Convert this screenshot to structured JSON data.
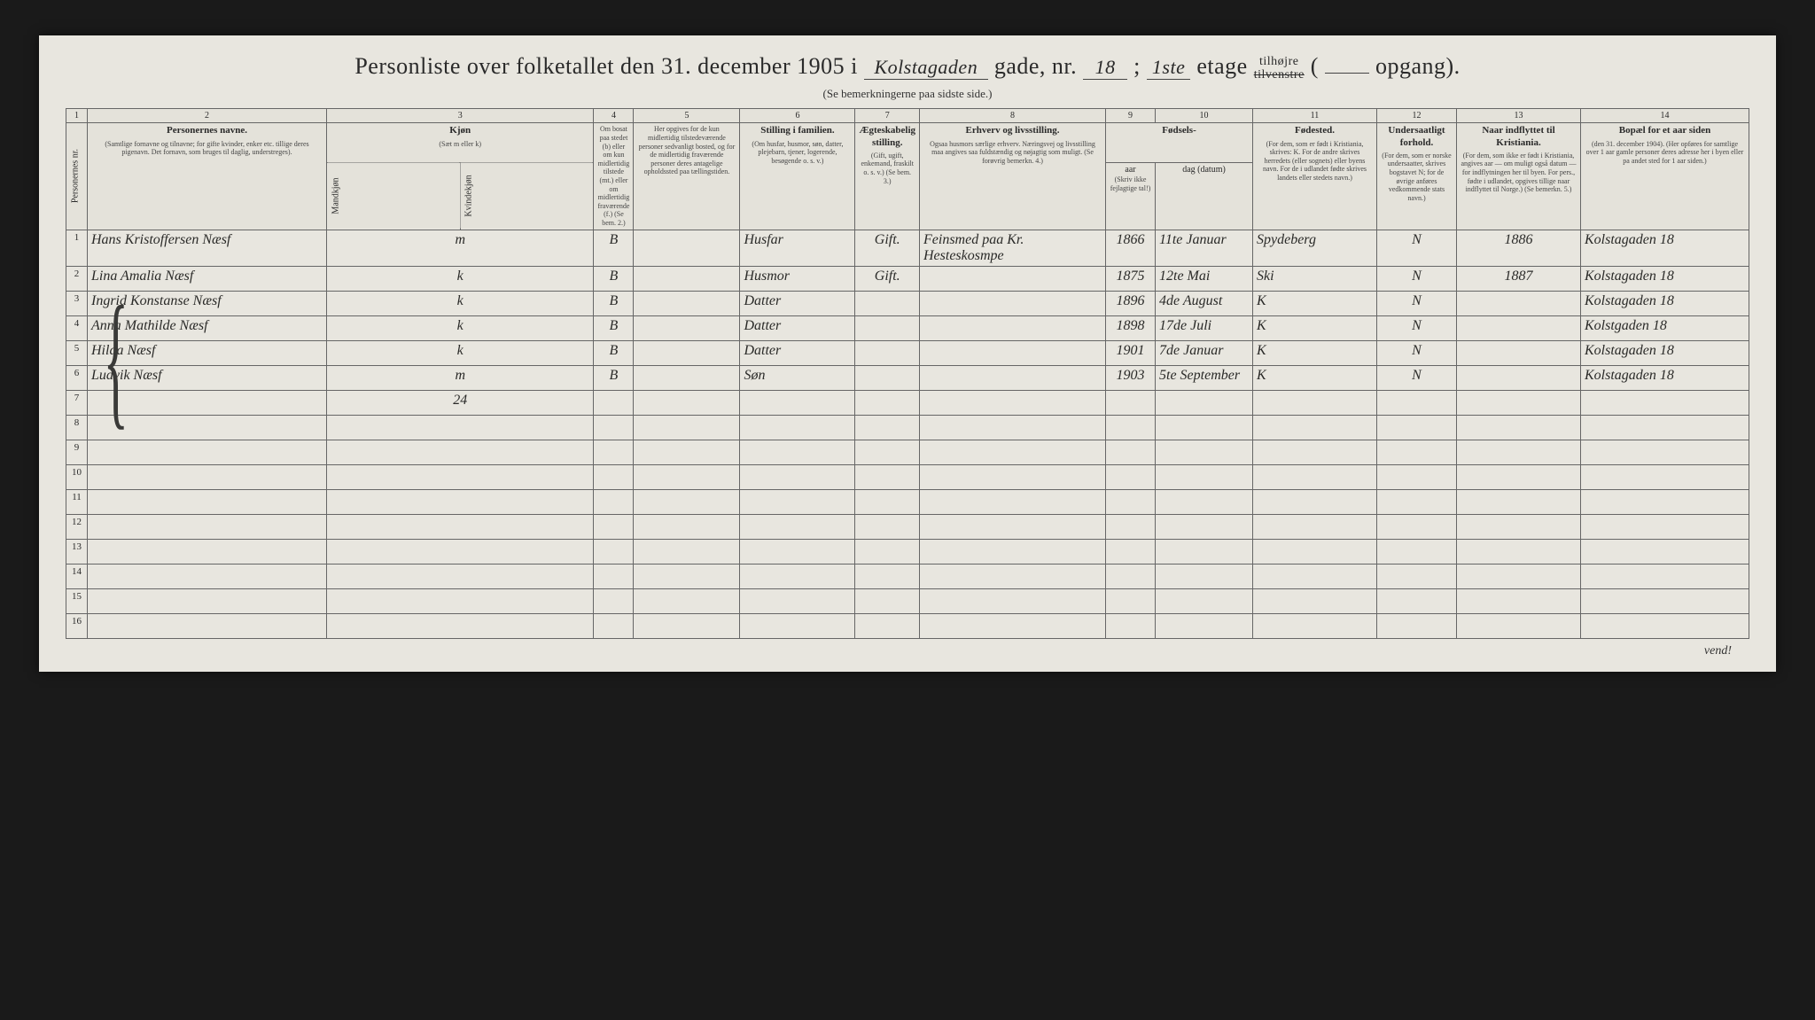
{
  "header": {
    "title_prefix": "Personliste over folketallet den 31. december 1905 i",
    "gade_value": "Kolstagaden",
    "gade_label": "gade, nr.",
    "nr_value": "18",
    "semicolon": ";",
    "etage_value": "1ste",
    "etage_label": "etage",
    "tilhojre": "tilhøjre",
    "tilvenstre": "tilvenstre",
    "opgang_open": "(",
    "opgang_label": "opgang).",
    "subtitle": "(Se bemerkningerne paa sidste side.)"
  },
  "colnums": [
    "1",
    "2",
    "3",
    "4",
    "5",
    "6",
    "7",
    "8",
    "9",
    "10",
    "11",
    "12",
    "13",
    "14"
  ],
  "columns": {
    "personernes_nr": "Personernes nr.",
    "navne_main": "Personernes navne.",
    "navne_sub": "(Samtlige fornavne og tilnavne; for gifte kvinder, enker etc. tillige deres pigenavn. Det fornavn, som bruges til daglig, understreges).",
    "kjon_main": "Kjøn",
    "kjon_sub": "(Sæt m eller k)",
    "kjon_m": "Mandkjøn",
    "kjon_k": "Kvindekjøn",
    "bosat_main": "Om bosat paa stedet (b) eller om kun midlertidig tilstede (mt.) eller om midlertidig fraværende (f.) (Se bem. 2.)",
    "opphold_main": "Her opgives for de kun midlertidig tilstedeværende personer sedvanligt bosted, og for de midlertidig fraværende personer deres antagelige opholdssted paa tællingstiden.",
    "stilling_main": "Stilling i familien.",
    "stilling_sub": "(Om husfar, husmor, søn, datter, plejebarn, tjener, logerende, besøgende o. s. v.)",
    "aegte_main": "Ægteskabelig stilling.",
    "aegte_sub": "(Gift, ugift, enkemand, fraskilt o. s. v.) (Se bem. 3.)",
    "erhverv_main": "Erhverv og livsstilling.",
    "erhverv_sub": "Ogsaa husmors særlige erhverv. Næringsvej og livsstilling maa angives saa fuldstændig og nøjagtig som muligt. (Se forøvrig bemerkn. 4.)",
    "fodsels_main": "Fødsels-",
    "aar": "aar",
    "dag": "dag (datum)",
    "fodsels_sub": "(Skriv ikke fejlagtige tal!)",
    "fodested_main": "Fødested.",
    "fodested_sub": "(For dem, som er født i Kristiania, skrives: K. For de andre skrives herredets (eller sognets) eller byens navn. For de i udlandet fødte skrives landets eller stedets navn.)",
    "undersaat_main": "Undersaatligt forhold.",
    "undersaat_sub": "(For dem, som er norske undersaatter, skrives bogstavet N; for de øvrige anføres vedkommende stats navn.)",
    "indflyt_main": "Naar indflyttet til Kristiania.",
    "indflyt_sub": "(For dem, som ikke er født i Kristiania, angives aar — om muligt også datum — for indflytningen her til byen. For pers., fødte i udlandet, opgives tillige naar indflyttet til Norge.) (Se bemerkn. 5.)",
    "bopael_main": "Bopæl for et aar siden",
    "bopael_sub": "(den 31. december 1904). (Her opføres for samtlige over 1 aar gamle personer deres adresse her i byen eller pa andet sted for 1 aar siden.)"
  },
  "rows": [
    {
      "nr": "1",
      "navn": "Hans Kristoffersen Næsf",
      "kjon": "m",
      "bosat": "B",
      "opphold": "",
      "stilling": "Husfar",
      "aegte": "Gift.",
      "erhverv": "Feinsmed paa Kr. Hesteskosmpe",
      "aar": "1866",
      "dag": "11te Januar",
      "fodested": "Spydeberg",
      "undersaat": "N",
      "indflyt": "1886",
      "bopael": "Kolstagaden 18"
    },
    {
      "nr": "2",
      "navn": "Lina Amalia Næsf",
      "kjon": "k",
      "bosat": "B",
      "opphold": "",
      "stilling": "Husmor",
      "aegte": "Gift.",
      "erhverv": "",
      "aar": "1875",
      "dag": "12te Mai",
      "fodested": "Ski",
      "undersaat": "N",
      "indflyt": "1887",
      "bopael": "Kolstagaden 18"
    },
    {
      "nr": "3",
      "navn": "Ingrid Konstanse Næsf",
      "kjon": "k",
      "bosat": "B",
      "opphold": "",
      "stilling": "Datter",
      "aegte": "",
      "erhverv": "",
      "aar": "1896",
      "dag": "4de August",
      "fodested": "K",
      "undersaat": "N",
      "indflyt": "",
      "bopael": "Kolstagaden 18"
    },
    {
      "nr": "4",
      "navn": "Anna Mathilde Næsf",
      "kjon": "k",
      "bosat": "B",
      "opphold": "",
      "stilling": "Datter",
      "aegte": "",
      "erhverv": "",
      "aar": "1898",
      "dag": "17de Juli",
      "fodested": "K",
      "undersaat": "N",
      "indflyt": "",
      "bopael": "Kolstgaden 18"
    },
    {
      "nr": "5",
      "navn": "Hilda Næsf",
      "kjon": "k",
      "bosat": "B",
      "opphold": "",
      "stilling": "Datter",
      "aegte": "",
      "erhverv": "",
      "aar": "1901",
      "dag": "7de Januar",
      "fodested": "K",
      "undersaat": "N",
      "indflyt": "",
      "bopael": "Kolstagaden 18"
    },
    {
      "nr": "6",
      "navn": "Ludvik Næsf",
      "kjon": "m",
      "bosat": "B",
      "opphold": "",
      "stilling": "Søn",
      "aegte": "",
      "erhverv": "",
      "aar": "1903",
      "dag": "5te September",
      "fodested": "K",
      "undersaat": "N",
      "indflyt": "",
      "bopael": "Kolstagaden 18"
    },
    {
      "nr": "7",
      "navn": "",
      "kjon": "24",
      "bosat": "",
      "opphold": "",
      "stilling": "",
      "aegte": "",
      "erhverv": "",
      "aar": "",
      "dag": "",
      "fodested": "",
      "undersaat": "",
      "indflyt": "",
      "bopael": ""
    }
  ],
  "empty_rows": [
    "8",
    "9",
    "10",
    "11",
    "12",
    "13",
    "14",
    "15",
    "16"
  ],
  "footer": {
    "vend": "vend!"
  }
}
